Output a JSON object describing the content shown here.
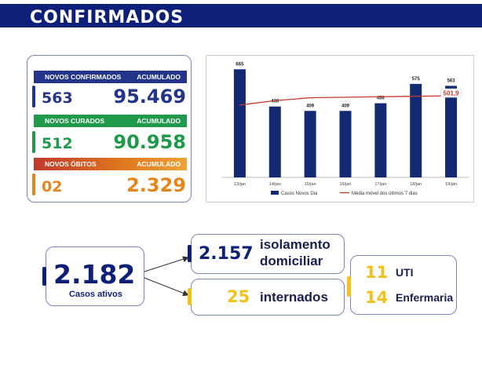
{
  "header": {
    "title": "CONFIRMADOS"
  },
  "stats": {
    "confirmados": {
      "label": "NOVOS CONFIRMADOS",
      "acc_label": "ACUMULADO",
      "novos": "563",
      "acumulado": "95.469",
      "color": "#23348a"
    },
    "curados": {
      "label": "NOVOS CURADOS",
      "acc_label": "ACUMULADO",
      "novos": "512",
      "acumulado": "90.958",
      "color": "#1f9a4a"
    },
    "obitos": {
      "label": "NOVOS ÓBITOS",
      "acc_label": "ACUMULADO",
      "novos": "02",
      "acumulado": "2.329",
      "color": "#e6861a"
    }
  },
  "chart_data": {
    "type": "bar",
    "categories": [
      "13/jan",
      "14/jan",
      "15/jan",
      "16/jan",
      "17/jan",
      "18/jan",
      "19/jan"
    ],
    "series": [
      {
        "name": "Casos Novos Dia",
        "type": "bar",
        "values": [
          665,
          436,
          409,
          409,
          456,
          575,
          563
        ],
        "color": "#132a73"
      },
      {
        "name": "Média móvel dos últimos 7 dias",
        "type": "line",
        "values": [
          445,
          472,
          490,
          493,
          496,
          499,
          501.9
        ],
        "color": "#c0392b"
      }
    ],
    "highlight_label": "501,9",
    "ylim": [
      0,
      700
    ],
    "legend_position": "bottom"
  },
  "ativos": {
    "value": "2.182",
    "label": "Casos ativos"
  },
  "isolamento": {
    "value": "2.157",
    "line1": "isolamento",
    "line2": "domiciliar"
  },
  "internados": {
    "value": "25",
    "label": "internados"
  },
  "leitos": {
    "uti_value": "11",
    "uti_label": "UTI",
    "enf_value": "14",
    "enf_label": "Enfermaria"
  },
  "colors": {
    "navy": "#0d1f78",
    "yellow": "#f2c21b",
    "text": "#1a1f4f"
  }
}
